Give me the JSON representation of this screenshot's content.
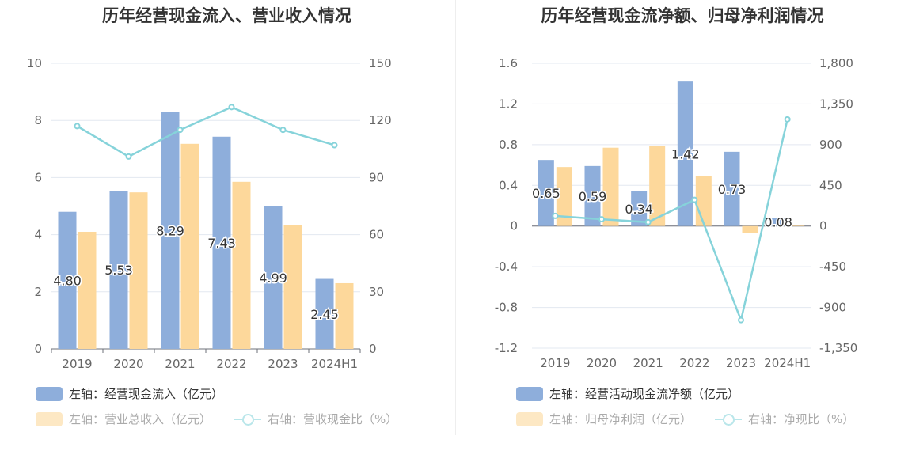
{
  "colors": {
    "blue": "#8eaedb",
    "orange": "#fdd89b",
    "line": "#86d3da",
    "grid": "#e3e8f0",
    "axis": "#666666"
  },
  "chart_data": [
    {
      "type": "bar",
      "title": "历年经营现金流入、营业收入情况",
      "categories": [
        "2019",
        "2020",
        "2021",
        "2022",
        "2023",
        "2024H1"
      ],
      "left_axis": {
        "ticks": [
          "0",
          "2",
          "4",
          "6",
          "8",
          "10"
        ],
        "min": 0,
        "max": 10
      },
      "right_axis": {
        "ticks": [
          "0",
          "30",
          "60",
          "90",
          "120",
          "150"
        ],
        "min": 0,
        "max": 150
      },
      "series": [
        {
          "name": "左轴：经营现金流入（亿元）",
          "axis": "left",
          "kind": "bar",
          "values": [
            4.8,
            5.53,
            8.29,
            7.43,
            4.99,
            2.45
          ],
          "labels": [
            "4.80",
            "5.53",
            "8.29",
            "7.43",
            "4.99",
            "2.45"
          ]
        },
        {
          "name": "左轴：营业总收入（亿元）",
          "axis": "left",
          "kind": "bar",
          "values": [
            4.1,
            5.48,
            7.18,
            5.85,
            4.33,
            2.3
          ]
        },
        {
          "name": "右轴：营收现金比（%）",
          "axis": "right",
          "kind": "line",
          "values": [
            117,
            101,
            115,
            127,
            115,
            107
          ]
        }
      ]
    },
    {
      "type": "bar",
      "title": "历年经营现金流净额、归母净利润情况",
      "categories": [
        "2019",
        "2020",
        "2021",
        "2022",
        "2023",
        "2024H1"
      ],
      "left_axis": {
        "ticks": [
          "-1.2",
          "-0.8",
          "-0.4",
          "0",
          "0.4",
          "0.8",
          "1.2",
          "1.6"
        ],
        "min": -1.2,
        "max": 1.6
      },
      "right_axis": {
        "ticks": [
          "-1,350",
          "-900",
          "-450",
          "0",
          "450",
          "900",
          "1,350",
          "1,800"
        ],
        "min": -1350,
        "max": 1800
      },
      "series": [
        {
          "name": "左轴：经营活动现金流净额（亿元）",
          "axis": "left",
          "kind": "bar",
          "values": [
            0.65,
            0.59,
            0.34,
            1.42,
            0.73,
            0.08
          ],
          "labels": [
            "0.65",
            "0.59",
            "0.34",
            "1.42",
            "0.73",
            "0.08"
          ]
        },
        {
          "name": "左轴：归母净利润（亿元）",
          "axis": "left",
          "kind": "bar",
          "values": [
            0.58,
            0.77,
            0.79,
            0.49,
            -0.07,
            0.01
          ]
        },
        {
          "name": "右轴：净现比（%）",
          "axis": "right",
          "kind": "line",
          "values": [
            112,
            75,
            43,
            290,
            -1040,
            1180
          ]
        }
      ]
    }
  ]
}
